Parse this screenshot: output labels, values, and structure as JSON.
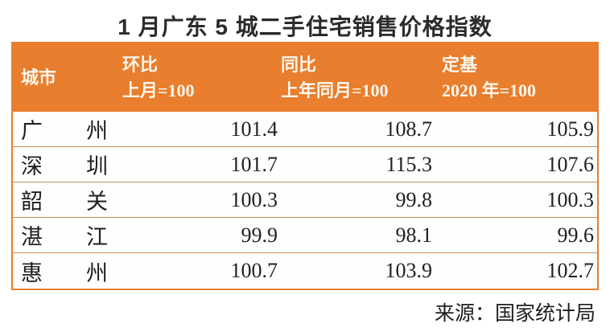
{
  "title": "1 月广东 5 城二手住宅销售价格指数",
  "table": {
    "header": {
      "city": "城市",
      "cols": [
        {
          "line1": "环比",
          "line2": "上月=100"
        },
        {
          "line1": "同比",
          "line2": "上年同月=100"
        },
        {
          "line1": "定基",
          "line2": "2020 年=100"
        }
      ]
    },
    "rows": [
      [
        "广州",
        "101.4",
        "108.7",
        "105.9"
      ],
      [
        "深圳",
        "101.7",
        "115.3",
        "107.6"
      ],
      [
        "韶关",
        "100.3",
        "99.8",
        "100.3"
      ],
      [
        "湛江",
        "99.9",
        "98.1",
        "99.6"
      ],
      [
        "惠州",
        "100.7",
        "103.9",
        "102.7"
      ]
    ]
  },
  "source": "来源：国家统计局",
  "colors": {
    "header_bg": "#E87E2E",
    "header_text": "#FDF6EC",
    "outer_border": "#E87E2E",
    "row_divider": "#C6905C",
    "title_text": "#2B2B2B",
    "body_text": "#1F1F1F"
  },
  "chart_data": {
    "type": "table",
    "title": "1 月广东 5 城二手住宅销售价格指数",
    "columns": [
      "城市",
      "环比 (上月=100)",
      "同比 (上年同月=100)",
      "定基 (2020 年=100)"
    ],
    "rows": [
      {
        "city": "广州",
        "mom": 101.4,
        "yoy": 108.7,
        "fixed_base": 105.9
      },
      {
        "city": "深圳",
        "mom": 101.7,
        "yoy": 115.3,
        "fixed_base": 107.6
      },
      {
        "city": "韶关",
        "mom": 100.3,
        "yoy": 99.8,
        "fixed_base": 100.3
      },
      {
        "city": "湛江",
        "mom": 99.9,
        "yoy": 98.1,
        "fixed_base": 99.6
      },
      {
        "city": "惠州",
        "mom": 100.7,
        "yoy": 103.9,
        "fixed_base": 102.7
      }
    ],
    "source": "来源：国家统计局"
  }
}
